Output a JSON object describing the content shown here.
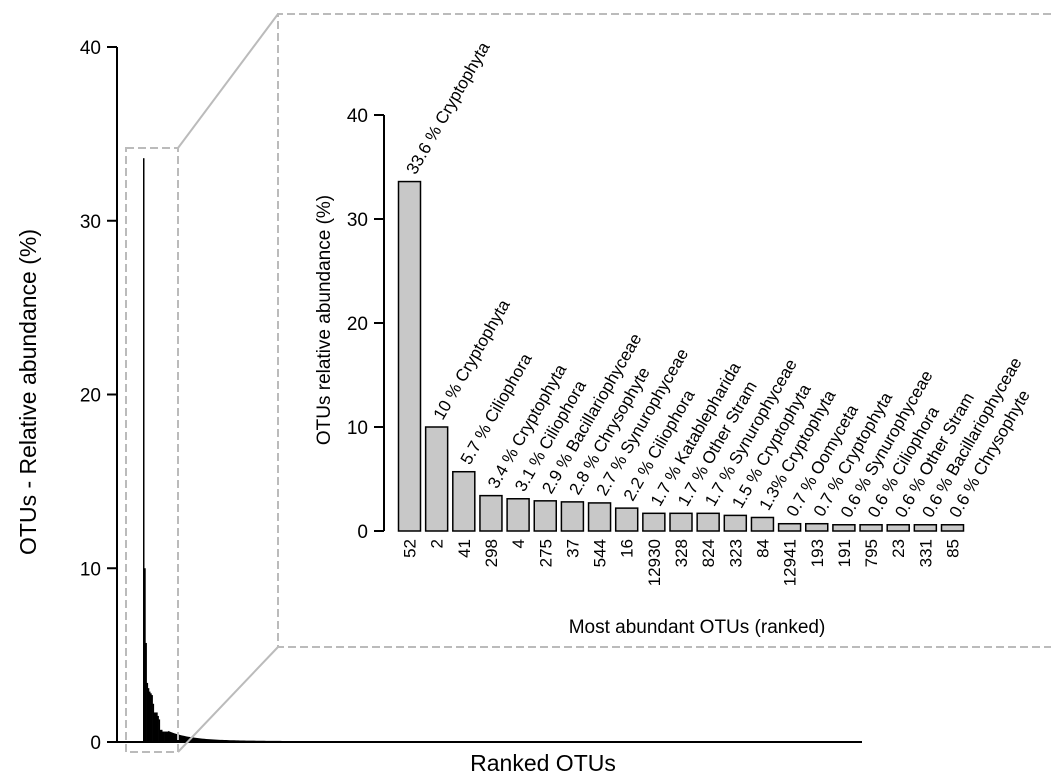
{
  "chart_data": [
    {
      "type": "bar",
      "title": "",
      "xlabel": "Ranked OTUs",
      "ylabel": "OTUs - Relative abundance (%)",
      "ylim": [
        0,
        40
      ],
      "yticks": [
        "0",
        "10",
        "20",
        "30",
        "40"
      ],
      "grid": false,
      "bar_color": "#000000",
      "values": [
        33.6,
        10,
        5.7,
        3.4,
        3.1,
        2.9,
        2.8,
        2.7,
        2.2,
        1.7,
        1.7,
        1.7,
        1.5,
        1.3,
        0.7,
        0.7,
        0.6,
        0.6,
        0.6,
        0.6,
        0.6
      ]
    },
    {
      "type": "bar",
      "title": "",
      "xlabel": "Most abundant OTUs (ranked)",
      "ylabel": "OTUs relative abundance (%)",
      "ylim": [
        0,
        40
      ],
      "yticks": [
        "0",
        "10",
        "20",
        "30",
        "40"
      ],
      "grid": false,
      "bar_color": "#c8c8c8",
      "categories": [
        "52",
        "2",
        "41",
        "298",
        "4",
        "275",
        "37",
        "544",
        "16",
        "12930",
        "328",
        "824",
        "323",
        "84",
        "12941",
        "193",
        "191",
        "795",
        "23",
        "331",
        "85"
      ],
      "values": [
        33.6,
        10,
        5.7,
        3.4,
        3.1,
        2.9,
        2.8,
        2.7,
        2.2,
        1.7,
        1.7,
        1.7,
        1.5,
        1.3,
        0.7,
        0.7,
        0.6,
        0.6,
        0.6,
        0.6,
        0.6
      ],
      "data_labels": [
        "33.6 % Cryptophyta",
        "10 % Cryptophyta",
        "5.7 % Ciliophora",
        "3.4 % Cryptophyta",
        "3.1 % Ciliophora",
        "2.9 % Bacillariophyceae",
        "2.8 % Chrysophyte",
        "2.7 % Synurophyceae",
        "2.2 % Ciliophora",
        "1.7 % Katablepharida",
        "1.7 % Other Stram",
        "1.7 % Synurophyceae",
        "1.5 % Cryptophyta",
        "1.3% Cryptophyta",
        "0.7 % Oomyceta",
        "0.7 % Cryptophyta",
        "0.6 % Synurophyceae",
        "0.6 % Ciliophora",
        "0.6 % Other Stram",
        "0.6 % Bacillariophyceae",
        "0.6 % Chrysophyte"
      ]
    }
  ]
}
